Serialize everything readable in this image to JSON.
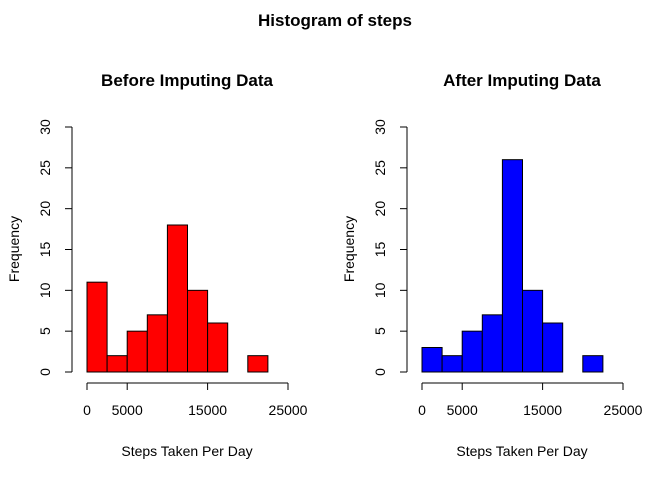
{
  "figure": {
    "title": "Histogram of steps"
  },
  "chart_data": [
    {
      "type": "bar",
      "title": "Before Imputing Data",
      "xlabel": "Steps Taken Per Day",
      "ylabel": "Frequency",
      "color": "#ff0000",
      "bin_edges": [
        0,
        2500,
        5000,
        7500,
        10000,
        12500,
        15000,
        17500,
        20000,
        22500
      ],
      "values": [
        11,
        2,
        5,
        7,
        18,
        10,
        6,
        0,
        2
      ],
      "xlim": [
        0,
        25000
      ],
      "ylim": [
        0,
        30
      ],
      "x_ticks": [
        0,
        5000,
        15000,
        25000
      ],
      "y_ticks": [
        0,
        5,
        10,
        15,
        20,
        25,
        30
      ],
      "grid": false,
      "legend": "none"
    },
    {
      "type": "bar",
      "title": "After Imputing Data",
      "xlabel": "Steps Taken Per Day",
      "ylabel": "Frequency",
      "color": "#0000ff",
      "bin_edges": [
        0,
        2500,
        5000,
        7500,
        10000,
        12500,
        15000,
        17500,
        20000,
        22500
      ],
      "values": [
        3,
        2,
        5,
        7,
        26,
        10,
        6,
        0,
        2
      ],
      "xlim": [
        0,
        25000
      ],
      "ylim": [
        0,
        30
      ],
      "x_ticks": [
        0,
        5000,
        15000,
        25000
      ],
      "y_ticks": [
        0,
        5,
        10,
        15,
        20,
        25,
        30
      ],
      "grid": false,
      "legend": "none"
    }
  ]
}
